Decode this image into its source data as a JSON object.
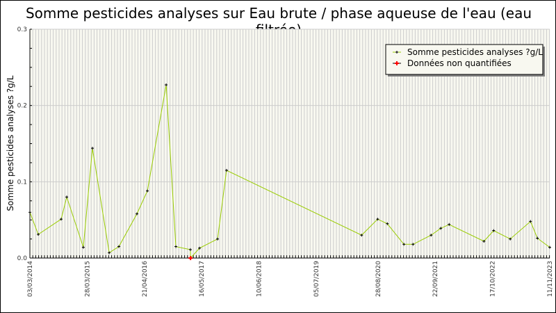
{
  "chart_data": {
    "type": "line",
    "title": "Somme pesticides analyses sur Eau brute / phase aqueuse de l'eau (eau filtrée)",
    "ylabel": "Somme pesticides analyses ?g/L",
    "xlabel": "",
    "ylim": [
      0,
      0.3
    ],
    "xlim": [
      "2014-03-03",
      "2023-11-11"
    ],
    "yticks": [
      "0.0",
      "0.1",
      "0.2",
      "0.3"
    ],
    "xticks": [
      {
        "label": "03/03/2014",
        "date": "2014-03-03"
      },
      {
        "label": "28/03/2015",
        "date": "2015-03-28"
      },
      {
        "label": "21/04/2016",
        "date": "2016-04-21"
      },
      {
        "label": "16/05/2017",
        "date": "2017-05-16"
      },
      {
        "label": "10/06/2018",
        "date": "2018-06-10"
      },
      {
        "label": "05/07/2019",
        "date": "2019-07-05"
      },
      {
        "label": "28/08/2020",
        "date": "2020-08-28"
      },
      {
        "label": "22/09/2021",
        "date": "2021-09-22"
      },
      {
        "label": "17/10/2022",
        "date": "2022-10-17"
      },
      {
        "label": "11/11/2023",
        "date": "2023-11-11"
      }
    ],
    "grid": true,
    "legend_position": "top-right",
    "colors": {
      "line": "#99cc00",
      "marker": "#000000",
      "non_quantified": "#ff0000",
      "background": "#f8f8f0",
      "grid": "#cccccc"
    },
    "series": [
      {
        "name": "Somme pesticides analyses ?g/L",
        "points": [
          {
            "x": "2014-03-03",
            "y": 0.06
          },
          {
            "x": "2014-04-29",
            "y": 0.031
          },
          {
            "x": "2014-10-02",
            "y": 0.051
          },
          {
            "x": "2014-11-09",
            "y": 0.08
          },
          {
            "x": "2015-03-02",
            "y": 0.014
          },
          {
            "x": "2015-05-03",
            "y": 0.144
          },
          {
            "x": "2015-08-25",
            "y": 0.007
          },
          {
            "x": "2015-10-30",
            "y": 0.015
          },
          {
            "x": "2016-03-01",
            "y": 0.058
          },
          {
            "x": "2016-05-11",
            "y": 0.088
          },
          {
            "x": "2016-09-16",
            "y": 0.227
          },
          {
            "x": "2016-11-21",
            "y": 0.015
          },
          {
            "x": "2017-02-28",
            "y": 0.011
          },
          {
            "x": "2017-03-01",
            "y": 0.0,
            "non_quantified": true
          },
          {
            "x": "2017-05-01",
            "y": 0.013
          },
          {
            "x": "2017-09-01",
            "y": 0.025
          },
          {
            "x": "2017-11-01",
            "y": 0.115
          },
          {
            "x": "2020-05-09",
            "y": 0.03
          },
          {
            "x": "2020-08-26",
            "y": 0.051
          },
          {
            "x": "2020-10-31",
            "y": 0.045
          },
          {
            "x": "2021-02-21",
            "y": 0.018
          },
          {
            "x": "2021-04-24",
            "y": 0.018
          },
          {
            "x": "2021-08-25",
            "y": 0.03
          },
          {
            "x": "2021-10-30",
            "y": 0.039
          },
          {
            "x": "2021-12-26",
            "y": 0.044
          },
          {
            "x": "2022-08-20",
            "y": 0.022
          },
          {
            "x": "2022-10-25",
            "y": 0.036
          },
          {
            "x": "2023-02-15",
            "y": 0.025
          },
          {
            "x": "2023-07-03",
            "y": 0.048
          },
          {
            "x": "2023-08-19",
            "y": 0.026
          },
          {
            "x": "2023-11-11",
            "y": 0.014
          }
        ]
      }
    ],
    "legend": [
      "Somme pesticides analyses ?g/L",
      "Données non quantifiées"
    ]
  }
}
